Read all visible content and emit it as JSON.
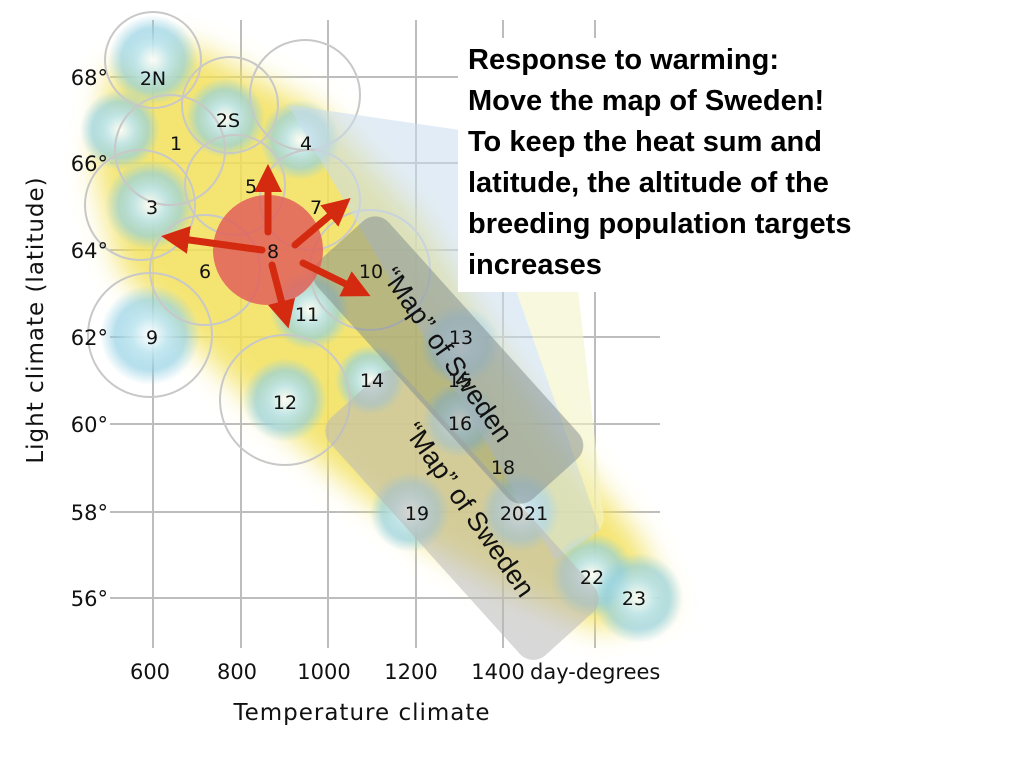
{
  "headline": {
    "lines": [
      "Response to warming:",
      "Move the map of Sweden!",
      "To keep the heat sum and",
      "latitude, the altitude of the",
      "breeding population targets",
      "increases"
    ]
  },
  "axes": {
    "y_title": "Light climate (latitude)",
    "x_title": "Temperature climate",
    "x_unit": "day-degrees",
    "y_ticks": [
      "68°",
      "66°",
      "64°",
      "62°",
      "60°",
      "58°",
      "56°"
    ],
    "x_ticks": [
      "600",
      "800",
      "1000",
      "1200",
      "1400"
    ]
  },
  "zones": [
    {
      "label": "2N"
    },
    {
      "label": "2S"
    },
    {
      "label": "1"
    },
    {
      "label": "4"
    },
    {
      "label": "5"
    },
    {
      "label": "7"
    },
    {
      "label": "3"
    },
    {
      "label": "8"
    },
    {
      "label": "6"
    },
    {
      "label": "10"
    },
    {
      "label": "11"
    },
    {
      "label": "9"
    },
    {
      "label": "13"
    },
    {
      "label": "14"
    },
    {
      "label": "15"
    },
    {
      "label": "12"
    },
    {
      "label": "16"
    },
    {
      "label": "18"
    },
    {
      "label": "19"
    },
    {
      "label": "2021"
    },
    {
      "label": "22"
    },
    {
      "label": "23"
    }
  ],
  "map_labels": [
    "“Map” of Sweden",
    "“Map” of Sweden"
  ],
  "colors": {
    "band_yellow": "#f2e05a",
    "band_blue": "#9fd8e8",
    "highlight_circle": "#e0605a",
    "arrow": "#d42a10",
    "callout": "#c9dcef",
    "moved_map": "#7e8a8e",
    "original_map": "#b8b8b8"
  }
}
